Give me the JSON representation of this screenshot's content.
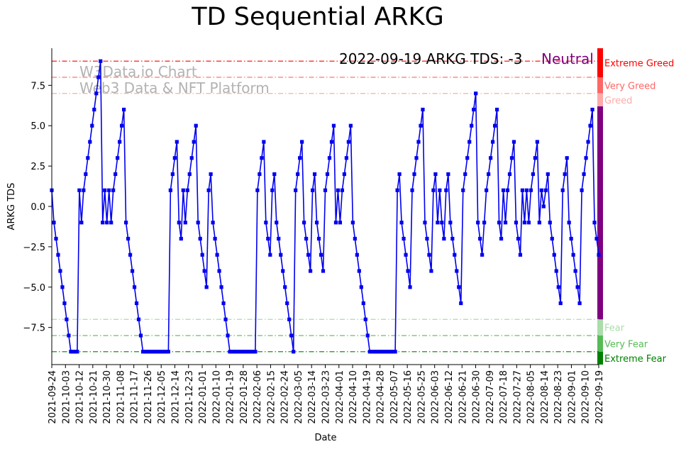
{
  "chart_data": {
    "type": "line",
    "title": "TD Sequential ARKG",
    "xlabel": "Date",
    "ylabel": "ARKG TDS",
    "ylim": [
      -9.8,
      9.8
    ],
    "yticks": [
      -7.5,
      -5.0,
      -2.5,
      0.0,
      2.5,
      5.0,
      7.5
    ],
    "ytick_labels": [
      "−7.5",
      "−5.0",
      "−2.5",
      "0.0",
      "2.5",
      "5.0",
      "7.5"
    ],
    "x_start": "2021-09-24",
    "x_end": "2022-09-19",
    "xtick_labels": [
      "2021-09-24",
      "2021-10-03",
      "2021-10-12",
      "2021-10-21",
      "2021-10-30",
      "2021-11-08",
      "2021-11-17",
      "2021-11-26",
      "2021-12-05",
      "2021-12-14",
      "2021-12-23",
      "2022-01-01",
      "2022-01-10",
      "2022-01-19",
      "2022-01-28",
      "2022-02-06",
      "2022-02-15",
      "2022-02-24",
      "2022-03-05",
      "2022-03-14",
      "2022-03-23",
      "2022-04-01",
      "2022-04-10",
      "2022-04-19",
      "2022-04-28",
      "2022-05-07",
      "2022-05-16",
      "2022-05-25",
      "2022-06-03",
      "2022-06-12",
      "2022-06-21",
      "2022-06-30",
      "2022-07-09",
      "2022-07-18",
      "2022-07-27",
      "2022-08-05",
      "2022-08-14",
      "2022-08-23",
      "2022-09-01",
      "2022-09-10",
      "2022-09-19"
    ],
    "annotation": "2022-09-19 ARKG TDS: -3",
    "status_label": "Neutral",
    "status_color": "#800080",
    "watermark": [
      "W3Data.io Chart",
      "Web3 Data & NFT Platform"
    ],
    "series": [
      {
        "color": "#0000ee",
        "values": [
          1,
          -1,
          -2,
          -3,
          -4,
          -5,
          -6,
          -7,
          -8,
          -9,
          -9,
          -9,
          -9,
          1,
          -1,
          1,
          2,
          3,
          4,
          5,
          6,
          7,
          8,
          9,
          -1,
          1,
          -1,
          1,
          -1,
          1,
          2,
          3,
          4,
          5,
          6,
          -1,
          -2,
          -3,
          -4,
          -5,
          -6,
          -7,
          -8,
          -9,
          -9,
          -9,
          -9,
          -9,
          -9,
          -9,
          -9,
          -9,
          -9,
          -9,
          -9,
          -9,
          1,
          2,
          3,
          4,
          -1,
          -2,
          1,
          -1,
          1,
          2,
          3,
          4,
          5,
          -1,
          -2,
          -3,
          -4,
          -5,
          1,
          2,
          -1,
          -2,
          -3,
          -4,
          -5,
          -6,
          -7,
          -8,
          -9,
          -9,
          -9,
          -9,
          -9,
          -9,
          -9,
          -9,
          -9,
          -9,
          -9,
          -9,
          -9,
          1,
          2,
          3,
          4,
          -1,
          -2,
          -3,
          1,
          2,
          -1,
          -2,
          -3,
          -4,
          -5,
          -6,
          -7,
          -8,
          -9,
          1,
          2,
          3,
          4,
          -1,
          -2,
          -3,
          -4,
          1,
          2,
          -1,
          -2,
          -3,
          -4,
          1,
          2,
          3,
          4,
          5,
          -1,
          1,
          -1,
          1,
          2,
          3,
          4,
          5,
          -1,
          -2,
          -3,
          -4,
          -5,
          -6,
          -7,
          -8,
          -9,
          -9,
          -9,
          -9,
          -9,
          -9,
          -9,
          -9,
          -9,
          -9,
          -9,
          -9,
          -9,
          1,
          2,
          -1,
          -2,
          -3,
          -4,
          -5,
          1,
          2,
          3,
          4,
          5,
          6,
          -1,
          -2,
          -3,
          -4,
          1,
          2,
          -1,
          1,
          -1,
          -2,
          1,
          2,
          -1,
          -2,
          -3,
          -4,
          -5,
          -6,
          1,
          2,
          3,
          4,
          5,
          6,
          7,
          -1,
          -2,
          -3,
          -1,
          1,
          2,
          3,
          4,
          5,
          6,
          -1,
          -2,
          1,
          -1,
          1,
          2,
          3,
          4,
          -1,
          -2,
          -3,
          1,
          -1,
          1,
          -1,
          1,
          2,
          3,
          4,
          -1,
          1,
          0,
          1,
          2,
          -1,
          -2,
          -3,
          -4,
          -5,
          -6,
          1,
          2,
          3,
          -1,
          -2,
          -3,
          -4,
          -5,
          -6,
          1,
          2,
          3,
          4,
          5,
          6,
          -1,
          -2,
          -3
        ]
      }
    ],
    "levels": [
      {
        "label": "Extreme Greed",
        "value": 9,
        "color": "#ff0000"
      },
      {
        "label": "Very Greed",
        "value": 8,
        "color": "#ff6666"
      },
      {
        "label": "Greed",
        "value": 7,
        "color": "#ffaaaa"
      },
      {
        "label": "Fear",
        "value": -7,
        "color": "#aaddaa"
      },
      {
        "label": "Very Fear",
        "value": -8,
        "color": "#55bb55"
      },
      {
        "label": "Extreme Fear",
        "value": -9,
        "color": "#008000"
      }
    ],
    "grid": false
  }
}
